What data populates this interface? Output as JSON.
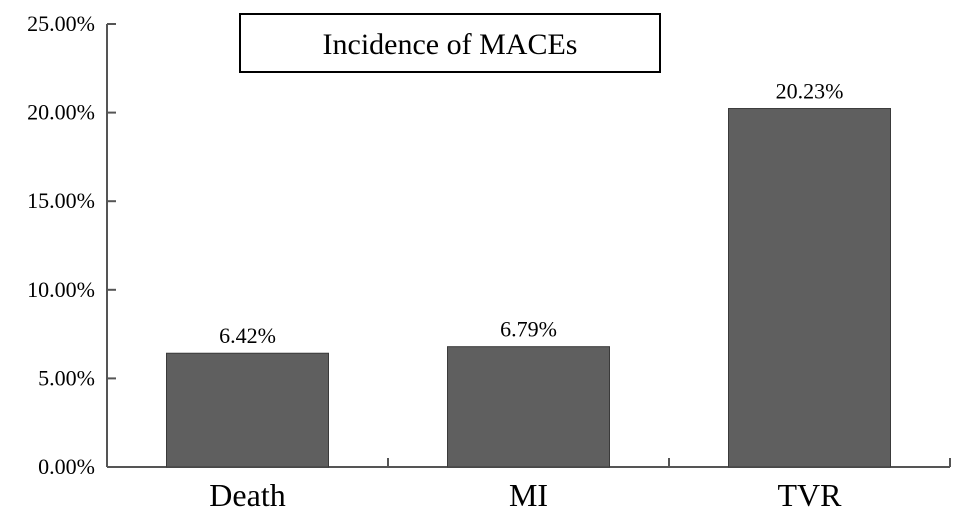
{
  "chart_data": {
    "type": "bar",
    "title": "Incidence of MACEs",
    "categories": [
      "Death",
      "MI",
      "TVR"
    ],
    "values": [
      6.42,
      6.79,
      20.23
    ],
    "value_labels": [
      "6.42%",
      "6.79%",
      "20.23%"
    ],
    "y_ticks": [
      0,
      5,
      10,
      15,
      20,
      25
    ],
    "y_tick_labels": [
      "0.00%",
      "5.00%",
      "10.00%",
      "15.00%",
      "20.00%",
      "25.00%"
    ],
    "ylim": [
      0,
      25
    ],
    "xlabel": "",
    "ylabel": "",
    "grid": false,
    "legend": "none",
    "colors": {
      "bar": "#5f5f5f",
      "axis": "#555555",
      "text": "#000000"
    }
  }
}
